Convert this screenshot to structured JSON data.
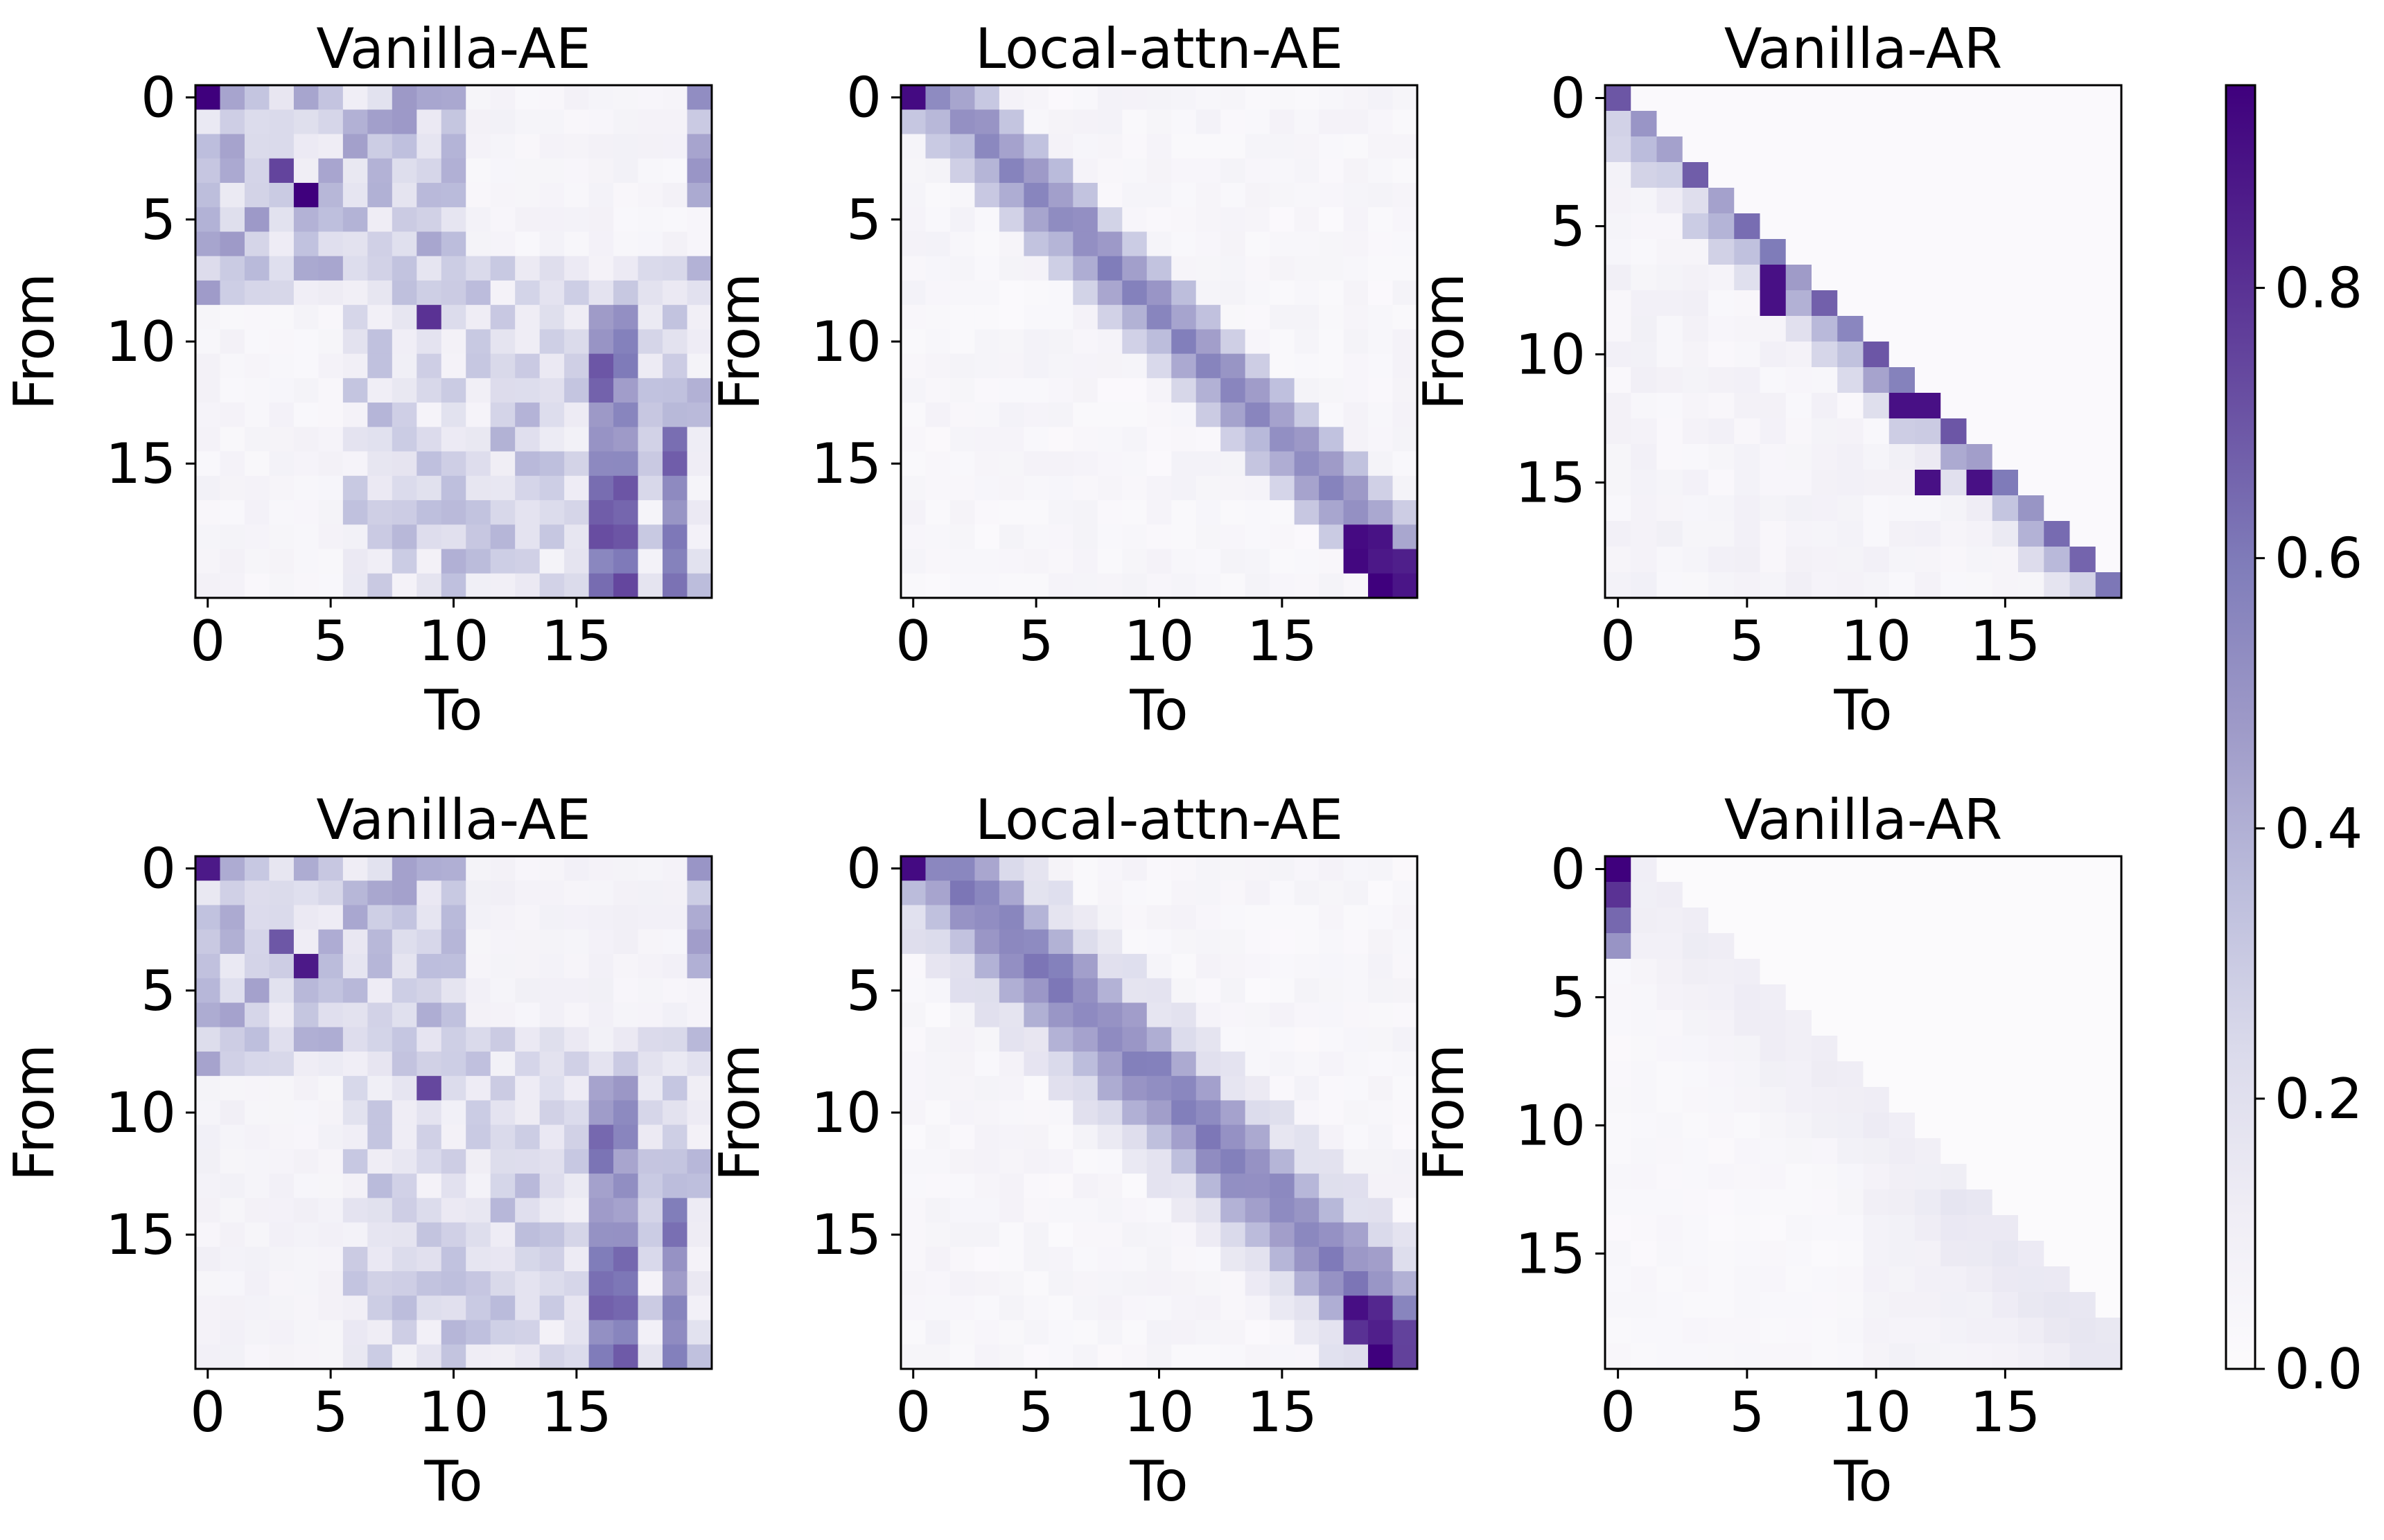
{
  "figure": {
    "colormap": {
      "name": "Purples",
      "stops": [
        "#fcfbfd",
        "#efedf5",
        "#dadaeb",
        "#bcbddc",
        "#9e9ac8",
        "#807dba",
        "#6a51a3",
        "#54278f",
        "#3f007d"
      ],
      "range": [
        0.0,
        0.95
      ],
      "ticks": [
        0.0,
        0.2,
        0.4,
        0.6,
        0.8
      ],
      "tick_labels": [
        "0.0",
        "0.2",
        "0.4",
        "0.6",
        "0.8"
      ]
    }
  },
  "chart_data": [
    {
      "type": "heatmap",
      "title": "Vanilla-AE",
      "xlabel": "To",
      "ylabel": "From",
      "size": 21,
      "pattern": "ae",
      "xticks": [
        0,
        5,
        10,
        15
      ],
      "yticks": [
        0,
        5,
        10,
        15
      ],
      "xtick_labels": [
        "0",
        "5",
        "10",
        "15"
      ],
      "ytick_labels": [
        "0",
        "5",
        "10",
        "15"
      ]
    },
    {
      "type": "heatmap",
      "title": "Local-attn-AE",
      "xlabel": "To",
      "ylabel": "From",
      "size": 21,
      "pattern": "local",
      "xticks": [
        0,
        5,
        10,
        15
      ],
      "yticks": [
        0,
        5,
        10,
        15
      ],
      "xtick_labels": [
        "0",
        "5",
        "10",
        "15"
      ],
      "ytick_labels": [
        "0",
        "5",
        "10",
        "15"
      ]
    },
    {
      "type": "heatmap",
      "title": "Vanilla-AR",
      "xlabel": "To",
      "ylabel": "From",
      "size": 20,
      "pattern": "ar",
      "xticks": [
        0,
        5,
        10,
        15
      ],
      "yticks": [
        0,
        5,
        10,
        15
      ],
      "xtick_labels": [
        "0",
        "5",
        "10",
        "15"
      ],
      "ytick_labels": [
        "0",
        "5",
        "10",
        "15"
      ]
    },
    {
      "type": "heatmap",
      "title": "Vanilla-AE",
      "xlabel": "To",
      "ylabel": "From",
      "size": 21,
      "pattern": "ae2",
      "xticks": [
        0,
        5,
        10,
        15
      ],
      "yticks": [
        0,
        5,
        10,
        15
      ],
      "xtick_labels": [
        "0",
        "5",
        "10",
        "15"
      ],
      "ytick_labels": [
        "0",
        "5",
        "10",
        "15"
      ]
    },
    {
      "type": "heatmap",
      "title": "Local-attn-AE",
      "xlabel": "To",
      "ylabel": "From",
      "size": 21,
      "pattern": "local2",
      "xticks": [
        0,
        5,
        10,
        15
      ],
      "yticks": [
        0,
        5,
        10,
        15
      ],
      "xtick_labels": [
        "0",
        "5",
        "10",
        "15"
      ],
      "ytick_labels": [
        "0",
        "5",
        "10",
        "15"
      ]
    },
    {
      "type": "heatmap",
      "title": "Vanilla-AR",
      "xlabel": "To",
      "ylabel": "From",
      "size": 20,
      "pattern": "ar2",
      "xticks": [
        0,
        5,
        10,
        15
      ],
      "yticks": [
        0,
        5,
        10,
        15
      ],
      "xtick_labels": [
        "0",
        "5",
        "10",
        "15"
      ],
      "ytick_labels": [
        "0",
        "5",
        "10",
        "15"
      ]
    }
  ]
}
